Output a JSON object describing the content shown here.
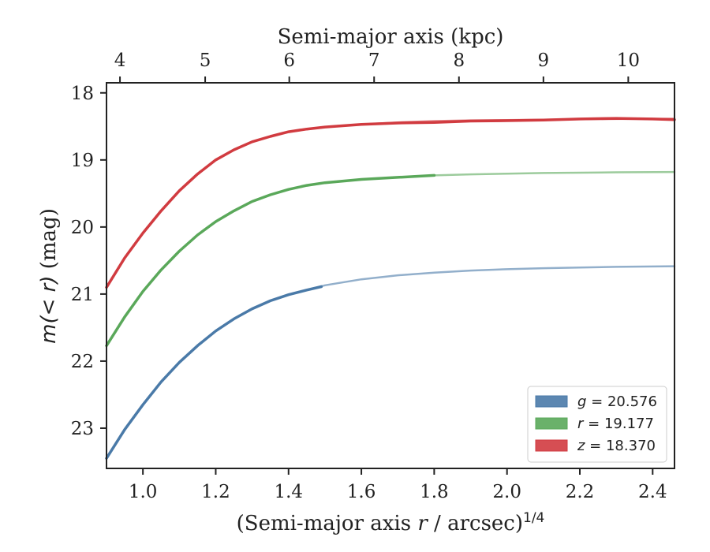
{
  "chart_data": {
    "type": "line",
    "xlabel_prefix": "(Semi-major axis ",
    "xlabel_var": "r",
    "xlabel_suffix": " / arcsec)",
    "xlabel_exp": "1/4",
    "top_xlabel": "Semi-major axis (kpc)",
    "ylabel_prefix": "m",
    "ylabel_math": "(< r)",
    "ylabel_suffix": " (mag)",
    "xlim": [
      0.9,
      2.46
    ],
    "ylim": [
      23.6,
      17.85
    ],
    "y_inverted": true,
    "x_ticks": [
      1.0,
      1.2,
      1.4,
      1.6,
      1.8,
      2.0,
      2.2,
      2.4
    ],
    "x_tick_labels": [
      "1.0",
      "1.2",
      "1.4",
      "1.6",
      "1.8",
      "2.0",
      "2.2",
      "2.4"
    ],
    "y_ticks": [
      18,
      19,
      20,
      21,
      22,
      23
    ],
    "y_tick_labels": [
      "18",
      "19",
      "20",
      "21",
      "22",
      "23"
    ],
    "top_x_ticks_kpc": [
      4,
      5,
      6,
      7,
      8,
      9,
      10
    ],
    "top_x_tick_labels": [
      "4",
      "5",
      "6",
      "7",
      "8",
      "9",
      "10"
    ],
    "top_x_ticks_at_bottom_x": [
      0.937,
      1.171,
      1.402,
      1.635,
      1.868,
      2.1,
      2.333
    ],
    "grid": false,
    "legend_position": "bottom-right",
    "series": [
      {
        "name": "g = 20.576",
        "band": "g",
        "value": "20.576",
        "color": "#4a7aa8",
        "observed": {
          "x": [
            0.9,
            0.95,
            1.0,
            1.05,
            1.1,
            1.15,
            1.2,
            1.25,
            1.3,
            1.35,
            1.4,
            1.45,
            1.49
          ],
          "y": [
            23.45,
            23.02,
            22.65,
            22.31,
            22.02,
            21.77,
            21.55,
            21.37,
            21.22,
            21.1,
            21.01,
            20.94,
            20.89
          ]
        },
        "model": {
          "x": [
            1.4,
            1.5,
            1.6,
            1.7,
            1.8,
            1.9,
            2.0,
            2.1,
            2.2,
            2.3,
            2.46
          ],
          "y": [
            21.01,
            20.87,
            20.78,
            20.72,
            20.68,
            20.65,
            20.63,
            20.615,
            20.605,
            20.595,
            20.585
          ]
        }
      },
      {
        "name": "r = 19.177",
        "band": "r",
        "value": "19.177",
        "color": "#5aa85a",
        "observed": {
          "x": [
            0.9,
            0.95,
            1.0,
            1.05,
            1.1,
            1.15,
            1.2,
            1.25,
            1.3,
            1.35,
            1.4,
            1.45,
            1.5,
            1.6,
            1.7,
            1.8
          ],
          "y": [
            21.77,
            21.34,
            20.96,
            20.64,
            20.36,
            20.12,
            19.92,
            19.76,
            19.62,
            19.52,
            19.44,
            19.38,
            19.34,
            19.29,
            19.26,
            19.23
          ]
        },
        "model": {
          "x": [
            1.8,
            1.9,
            2.0,
            2.1,
            2.2,
            2.3,
            2.46
          ],
          "y": [
            19.23,
            19.215,
            19.205,
            19.195,
            19.19,
            19.185,
            19.18
          ]
        }
      },
      {
        "name": "z = 18.370",
        "band": "z",
        "value": "18.370",
        "color": "#d13b40",
        "observed": {
          "x": [
            0.9,
            0.95,
            1.0,
            1.05,
            1.1,
            1.15,
            1.2,
            1.25,
            1.3,
            1.35,
            1.4,
            1.45,
            1.5,
            1.6,
            1.7,
            1.8,
            1.9,
            2.0,
            2.1,
            2.2,
            2.3,
            2.4,
            2.46
          ],
          "y": [
            20.9,
            20.46,
            20.09,
            19.76,
            19.46,
            19.21,
            19.0,
            18.85,
            18.73,
            18.65,
            18.58,
            18.54,
            18.51,
            18.47,
            18.45,
            18.44,
            18.42,
            18.415,
            18.405,
            18.39,
            18.38,
            18.39,
            18.4
          ]
        },
        "model": {
          "x": [
            1.5,
            1.6,
            1.7,
            1.8,
            1.9,
            2.0,
            2.1,
            2.2,
            2.3,
            2.46
          ],
          "y": [
            18.51,
            18.47,
            18.44,
            18.42,
            18.41,
            18.405,
            18.4,
            18.395,
            18.39,
            18.385
          ]
        }
      }
    ]
  }
}
